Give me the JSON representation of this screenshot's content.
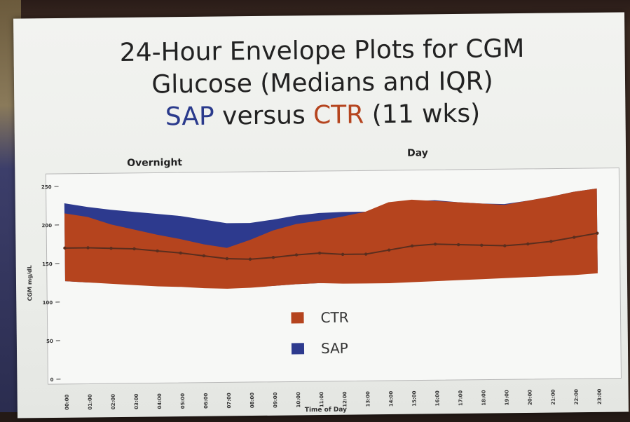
{
  "slide": {
    "title_line1": "24-Hour Envelope Plots for CGM",
    "title_line2": "Glucose (Medians and IQR)",
    "title_sap": "SAP",
    "title_versus": " versus ",
    "title_ctr": "CTR",
    "title_weeks": " (11 wks)",
    "section_overnight": "Overnight",
    "section_day": "Day"
  },
  "colors": {
    "ctr": "#b5441e",
    "sap": "#2d3a8e",
    "median": "#5a2e1e"
  },
  "chart_data": {
    "type": "area",
    "xlabel": "Time of Day",
    "ylabel": "CGM mg/dL",
    "ylim": [
      0,
      250
    ],
    "yticks": [
      0,
      50,
      100,
      150,
      200,
      250
    ],
    "x": [
      "00:00",
      "01:00",
      "02:00",
      "03:00",
      "04:00",
      "05:00",
      "06:00",
      "07:00",
      "08:00",
      "09:00",
      "10:00",
      "11:00",
      "12:00",
      "13:00",
      "14:00",
      "15:00",
      "16:00",
      "17:00",
      "18:00",
      "19:00",
      "20:00",
      "21:00",
      "22:00",
      "23:00"
    ],
    "series": [
      {
        "name": "SAP",
        "q1": [
          127,
          125,
          124,
          122,
          120,
          119,
          117,
          116,
          117,
          118,
          120,
          121,
          121,
          122,
          125,
          127,
          128,
          128,
          127,
          127,
          128,
          130,
          132,
          134
        ],
        "q3": [
          228,
          223,
          219,
          216,
          213,
          210,
          205,
          200,
          200,
          204,
          209,
          212,
          213,
          213,
          218,
          226,
          227,
          224,
          222,
          221,
          225,
          230,
          236,
          240
        ]
      },
      {
        "name": "CTR",
        "q1": [
          127,
          125,
          123,
          121,
          119,
          118,
          116,
          115,
          116,
          118,
          120,
          121,
          120,
          120,
          120,
          121,
          122,
          123,
          124,
          125,
          126,
          127,
          128,
          130
        ],
        "q3": [
          215,
          210,
          200,
          193,
          186,
          180,
          173,
          168,
          178,
          190,
          198,
          202,
          207,
          213,
          225,
          228,
          226,
          224,
          222,
          220,
          225,
          230,
          236,
          240
        ]
      },
      {
        "name": "Median",
        "values": [
          170,
          170,
          169,
          168,
          165,
          162,
          158,
          154,
          153,
          155,
          158,
          160,
          158,
          158,
          163,
          168,
          170,
          169,
          168,
          167,
          169,
          172,
          177,
          182
        ]
      }
    ],
    "legend": [
      {
        "label": "CTR",
        "color": "#b5441e"
      },
      {
        "label": "SAP",
        "color": "#2d3a8e"
      }
    ],
    "legend_position": "bottom-center",
    "grid": false
  }
}
